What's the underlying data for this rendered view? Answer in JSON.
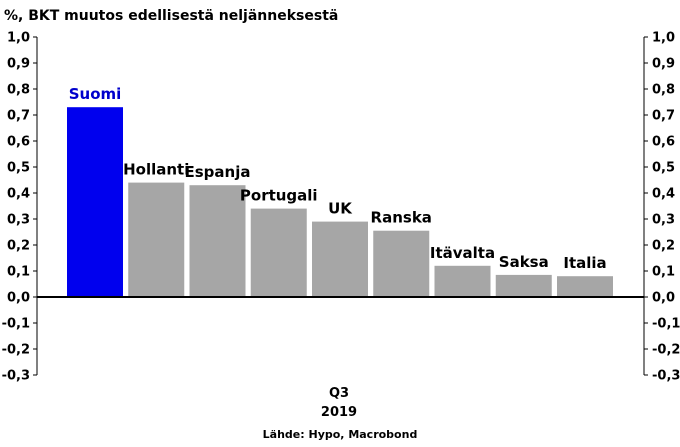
{
  "chart_data": {
    "type": "bar",
    "title": "%, BKT muutos edellisestä neljänneksestä",
    "source": "Lähde: Hypo, Macrobond",
    "period_labels": [
      "Q3",
      "2019"
    ],
    "categories": [
      "Suomi",
      "Hollanti",
      "Espanja",
      "Portugali",
      "UK",
      "Ranska",
      "Itävalta",
      "Saksa",
      "Italia"
    ],
    "values": [
      0.73,
      0.44,
      0.43,
      0.34,
      0.29,
      0.255,
      0.12,
      0.085,
      0.08
    ],
    "ylim": [
      -0.3,
      1.0
    ],
    "yticks": [
      1.0,
      0.9,
      0.8,
      0.7,
      0.6,
      0.5,
      0.4,
      0.3,
      0.2,
      0.1,
      0.0,
      -0.1,
      -0.2,
      -0.3
    ],
    "ytick_labels": [
      "1,0",
      "0,9",
      "0,8",
      "0,7",
      "0,6",
      "0,5",
      "0,4",
      "0,3",
      "0,2",
      "0,1",
      "0,0",
      "-0,1",
      "-0,2",
      "-0,3"
    ],
    "y_axes": "both sides",
    "grid": false,
    "colors": {
      "highlight": "#0000ee",
      "highlight_label": "#0000cc",
      "bar": "#a6a6a6",
      "text": "#000000"
    }
  }
}
